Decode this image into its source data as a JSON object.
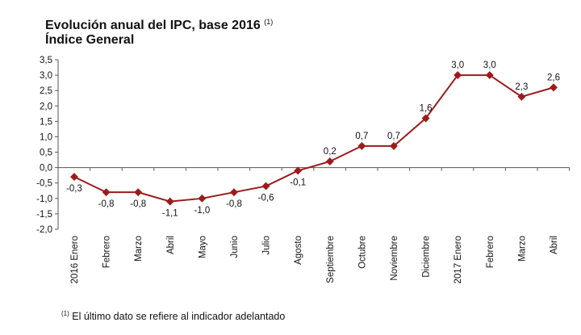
{
  "chart_data": {
    "type": "line",
    "title": "Evolución anual del IPC, base 2016",
    "title_note": "(1)",
    "subtitle": "Índice General",
    "categories": [
      "2016 Enero",
      "Febrero",
      "Marzo",
      "Abril",
      "Mayo",
      "Junio",
      "Julio",
      "Agosto",
      "Septiembre",
      "Octubre",
      "Noviembre",
      "Diciembre",
      "2017 Enero",
      "Febrero",
      "Marzo",
      "Abril"
    ],
    "series": [
      {
        "name": "IPC",
        "values": [
          -0.3,
          -0.8,
          -0.8,
          -1.1,
          -1.0,
          -0.8,
          -0.6,
          -0.1,
          0.2,
          0.7,
          0.7,
          1.6,
          3.0,
          3.0,
          2.3,
          2.6
        ],
        "color": "#9b1b1b"
      }
    ],
    "data_labels": [
      "-0,3",
      "-0,8",
      "-0,8",
      "-1,1",
      "-1,0",
      "-0,8",
      "-0,6",
      "-0,1",
      "0,2",
      "0,7",
      "0,7",
      "1,6",
      "3,0",
      "3,0",
      "2,3",
      "2,6"
    ],
    "ylim": [
      -2.0,
      3.5
    ],
    "yticks": [
      "3,5",
      "3,0",
      "2,5",
      "2,0",
      "1,5",
      "1,0",
      "0,5",
      "0,0",
      "-0,5",
      "-1,0",
      "-1,5",
      "-2,0"
    ],
    "grid": false,
    "footnote_mark": "(1)",
    "footnote": "El último dato se refiere al indicador adelantado"
  }
}
